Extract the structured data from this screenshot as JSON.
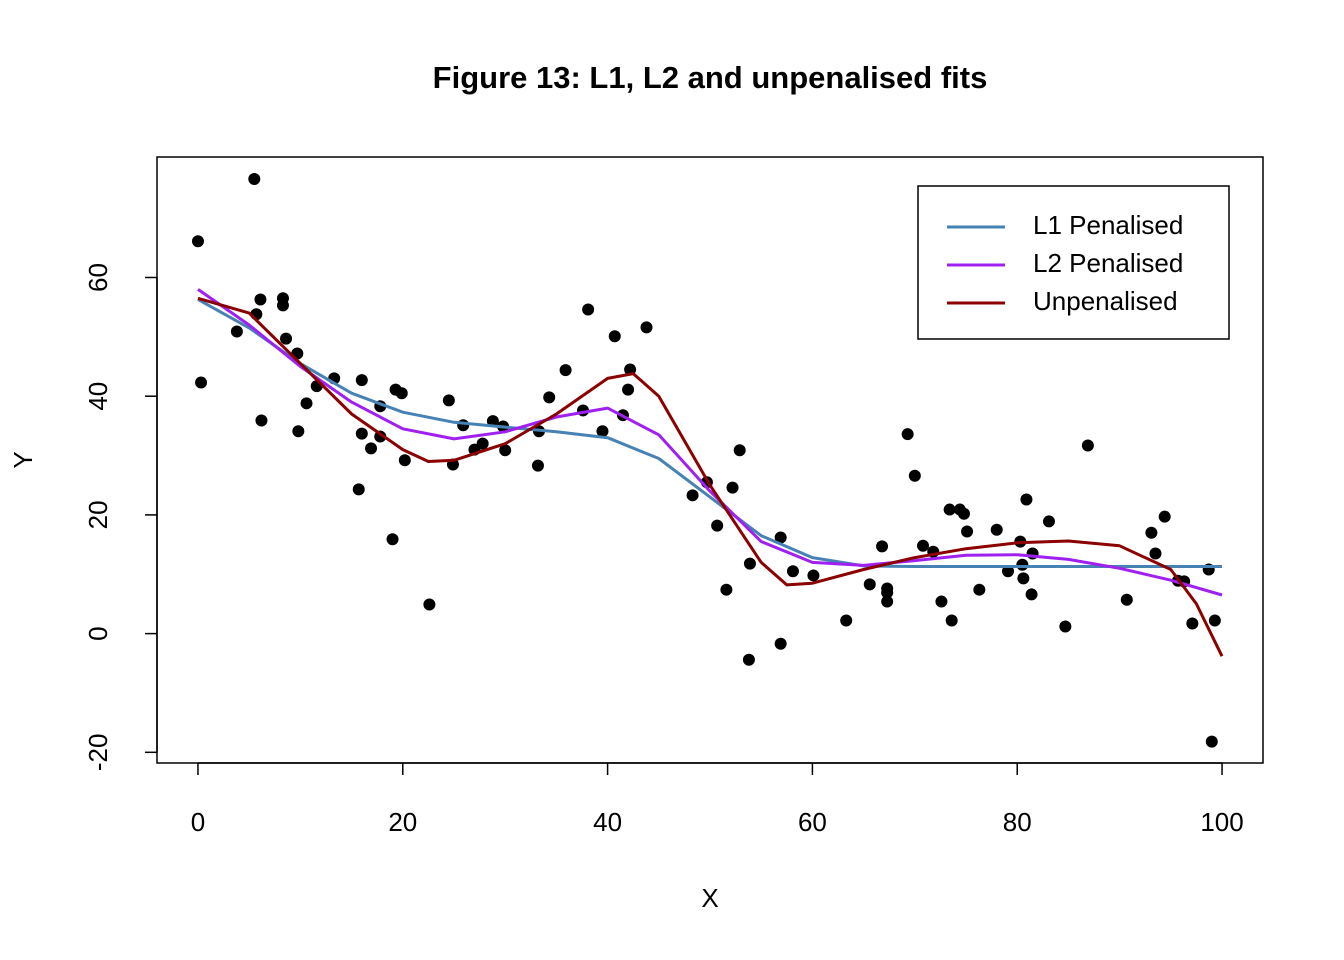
{
  "chart_data": {
    "type": "scatter",
    "title": "Figure 13: L1, L2 and unpenalised fits",
    "x_label": "X",
    "y_label": "Y",
    "xlim": [
      -4,
      104
    ],
    "ylim": [
      -21.8,
      80.3
    ],
    "xticks": [
      0,
      20,
      40,
      60,
      80,
      100
    ],
    "yticks": [
      -20,
      0,
      20,
      40,
      60
    ],
    "legend": "top-right",
    "series": [
      {
        "type": "points",
        "color": "#000000",
        "x": [
          0,
          0.3,
          3.8,
          5.5,
          5.7,
          6.1,
          6.2,
          8.3,
          8.3,
          8.6,
          9.7,
          9.8,
          10.6,
          11.6,
          13.3,
          15.7,
          16.0,
          16.0,
          16.9,
          17.8,
          17.8,
          19.0,
          19.3,
          19.9,
          20.2,
          22.6,
          24.5,
          24.9,
          25.9,
          27.0,
          27.8,
          28.8,
          29.8,
          30.0,
          33.2,
          33.3,
          34.3,
          35.9,
          37.6,
          38.1,
          39.5,
          40.7,
          41.5,
          42.0,
          42.2,
          43.8,
          48.3,
          49.7,
          50.7,
          51.6,
          52.2,
          52.9,
          53.9,
          53.8,
          56.9,
          56.9,
          58.1,
          60.1,
          63.3,
          65.6,
          66.8,
          67.3,
          67.3,
          67.3,
          69.3,
          70.0,
          70.8,
          71.8,
          72.6,
          73.4,
          73.6,
          74.4,
          74.8,
          75.1,
          76.3,
          78.0,
          79.1,
          80.3,
          80.5,
          80.6,
          80.9,
          81.4,
          81.5,
          83.1,
          84.7,
          86.9,
          90.7,
          93.1,
          93.5,
          94.4,
          95.7,
          96.3,
          97.1,
          98.7,
          99.0,
          99.3
        ],
        "values": [
          66.1,
          42.3,
          50.9,
          76.6,
          53.8,
          56.3,
          35.9,
          56.5,
          55.3,
          49.7,
          47.2,
          34.1,
          38.8,
          41.7,
          43.0,
          24.3,
          42.7,
          33.7,
          31.2,
          38.3,
          33.2,
          15.9,
          41.1,
          40.5,
          29.2,
          4.9,
          39.3,
          28.5,
          35.1,
          31.0,
          32.0,
          35.8,
          34.9,
          30.9,
          28.3,
          34.1,
          39.8,
          44.4,
          37.6,
          54.6,
          34.1,
          50.1,
          36.8,
          41.1,
          44.5,
          51.6,
          23.3,
          25.5,
          18.2,
          7.4,
          24.6,
          30.9,
          11.8,
          -4.4,
          -1.7,
          16.2,
          10.5,
          9.8,
          2.2,
          8.3,
          14.7,
          7.6,
          5.4,
          6.9,
          33.6,
          26.6,
          14.8,
          13.8,
          5.4,
          20.9,
          2.2,
          20.9,
          20.2,
          17.2,
          7.4,
          17.5,
          10.5,
          15.5,
          11.6,
          9.3,
          22.6,
          6.6,
          13.5,
          18.9,
          1.2,
          31.7,
          5.7,
          17.0,
          13.5,
          19.7,
          8.9,
          8.8,
          1.7,
          10.8,
          -18.2,
          2.2
        ]
      },
      {
        "type": "line",
        "name": "L1 Penalised",
        "color": "#4682b4",
        "x": [
          0,
          5,
          10,
          15,
          20,
          25,
          30,
          35,
          40,
          45,
          50,
          55,
          60,
          65,
          70,
          75,
          80,
          85,
          90,
          95,
          100
        ],
        "values": [
          56.3,
          51.5,
          45.5,
          40.5,
          37.3,
          35.6,
          34.8,
          34,
          33,
          29.5,
          23,
          16.5,
          12.8,
          11.4,
          11.3,
          11.3,
          11.3,
          11.3,
          11.3,
          11.3,
          11.3
        ]
      },
      {
        "type": "line",
        "name": "L2 Penalised",
        "color": "#a020f0",
        "x": [
          0,
          5,
          10,
          15,
          20,
          25,
          30,
          35,
          40,
          45,
          50,
          55,
          60,
          65,
          70,
          75,
          80,
          85,
          90,
          95,
          100
        ],
        "values": [
          58,
          52,
          45,
          39,
          34.5,
          32.8,
          34,
          36.5,
          38,
          33.5,
          24,
          15.5,
          12,
          11.5,
          12.3,
          13.2,
          13.3,
          12.5,
          11,
          9,
          6.5
        ]
      },
      {
        "type": "line",
        "name": "Unpenalised",
        "color": "#8b0000",
        "x": [
          0,
          5,
          10,
          15,
          20,
          22.5,
          25,
          30,
          35,
          40,
          42.5,
          45,
          50,
          55,
          57.5,
          60,
          65,
          70,
          75,
          80,
          85,
          90,
          95,
          97.5,
          100
        ],
        "values": [
          56.5,
          54,
          45.5,
          37,
          31,
          29,
          29.2,
          32,
          37,
          43,
          43.8,
          40,
          25,
          12,
          8.2,
          8.5,
          10.8,
          12.8,
          14.3,
          15.3,
          15.6,
          14.8,
          10.8,
          5,
          -3.8
        ]
      }
    ]
  }
}
